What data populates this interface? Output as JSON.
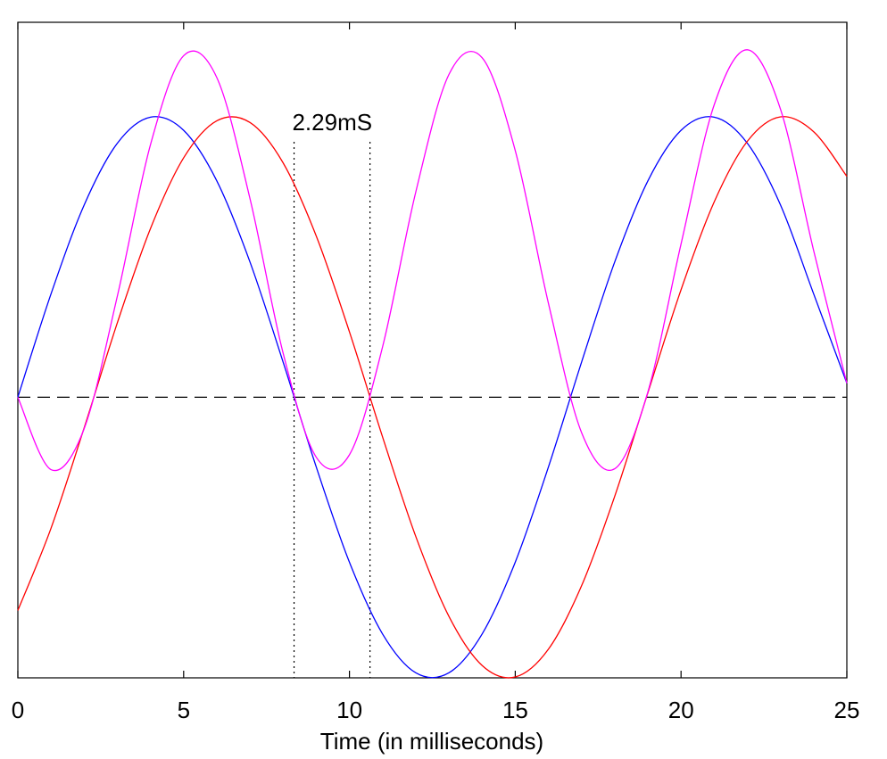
{
  "chart_data": {
    "type": "line",
    "title": "",
    "xlabel": "Time (in milliseconds)",
    "ylabel": "",
    "xlim": [
      0,
      25
    ],
    "ylim": [
      -1,
      1.336
    ],
    "xticks": [
      0,
      5,
      10,
      15,
      20,
      25
    ],
    "xtick_labels": [
      "0",
      "5",
      "10",
      "15",
      "20",
      "25"
    ],
    "yticks_shown": false,
    "grid": false,
    "legend": "none",
    "x": [
      0,
      1,
      2,
      3,
      4,
      5,
      6,
      7,
      8,
      9,
      10,
      11,
      12,
      13,
      14,
      15,
      16,
      17,
      18,
      19,
      20,
      21,
      22,
      23,
      24,
      25
    ],
    "series": [
      {
        "color": "#0000ff",
        "values": [
          0,
          0.368,
          0.685,
          0.905,
          0.998,
          0.951,
          0.771,
          0.482,
          0.125,
          -0.249,
          -0.588,
          -0.844,
          -0.982,
          -0.982,
          -0.844,
          -0.588,
          -0.249,
          0.125,
          0.482,
          0.771,
          0.951,
          0.998,
          0.905,
          0.685,
          0.368,
          0.05
        ]
      },
      {
        "color": "#ff0000",
        "values": [
          -0.76,
          -0.467,
          -0.109,
          0.265,
          0.601,
          0.853,
          0.985,
          0.979,
          0.835,
          0.574,
          0.233,
          -0.142,
          -0.496,
          -0.781,
          -0.956,
          -0.997,
          -0.898,
          -0.672,
          -0.353,
          0.016,
          0.383,
          0.696,
          0.912,
          0.999,
          0.946,
          0.787
        ]
      },
      {
        "color": "#ff00ff",
        "values": [
          0,
          -0.258,
          -0.112,
          0.36,
          0.9,
          1.217,
          1.139,
          0.708,
          0.157,
          -0.214,
          -0.205,
          0.18,
          0.731,
          1.15,
          1.21,
          0.879,
          0.335,
          -0.126,
          -0.255,
          0.019,
          0.546,
          1.042,
          1.238,
          1.026,
          0.522,
          0.05
        ]
      }
    ],
    "reference_line": {
      "y": 0,
      "style": "dashed",
      "color": "#000000"
    },
    "markers": [
      {
        "x": 8.33,
        "y_top": 0.91,
        "style": "dotted"
      },
      {
        "x": 10.62,
        "y_top": 0.91,
        "style": "dotted"
      }
    ],
    "annotation": {
      "text": "2.29mS",
      "x": 9.48,
      "y": 0.98
    }
  }
}
